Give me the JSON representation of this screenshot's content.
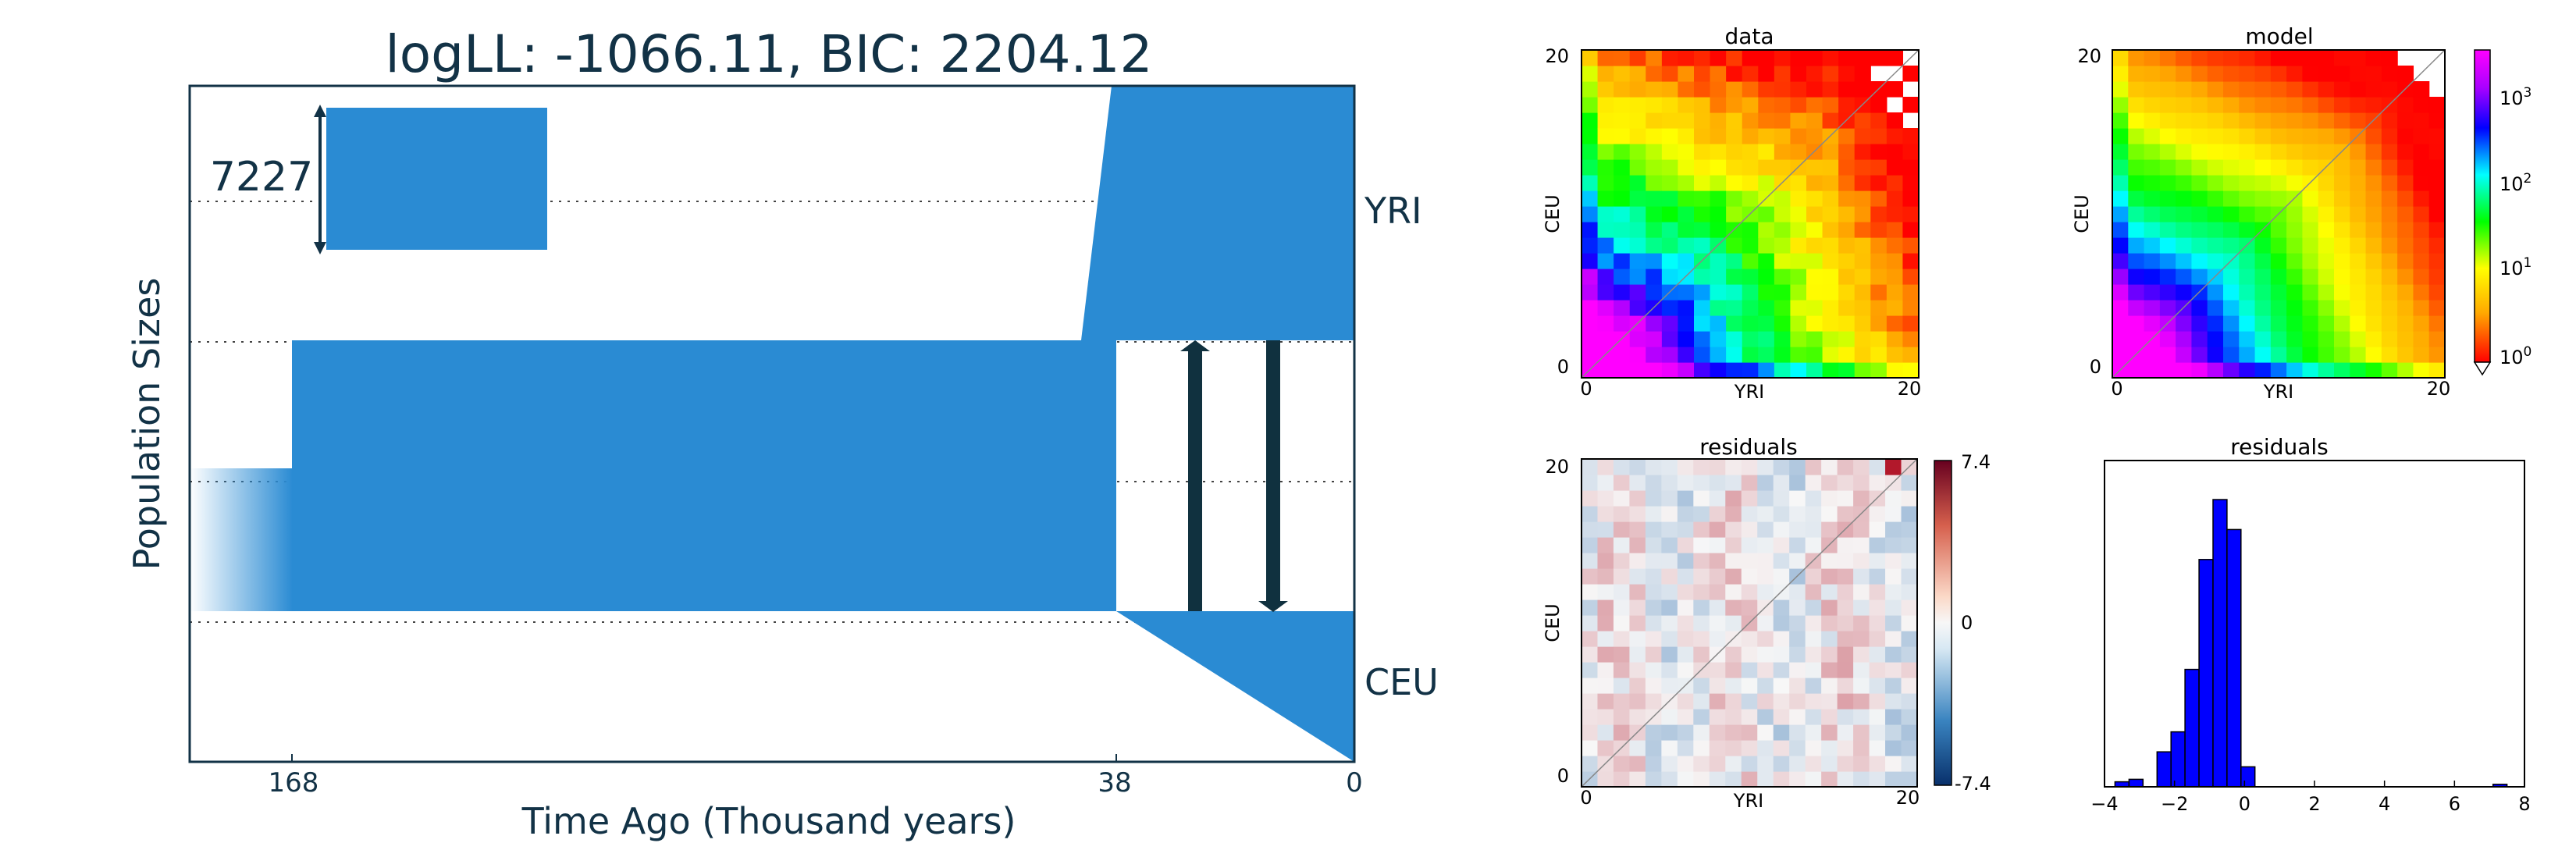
{
  "demography": {
    "title": "logLL:   -1066.11, BIC:    2204.12",
    "xlabel": "Time Ago (Thousand years)",
    "ylabel": "Population Sizes",
    "time_ticks": [
      "168",
      "38",
      "0"
    ],
    "populations": [
      "YRI",
      "CEU"
    ],
    "scale_bar_label": "7227",
    "color": "#2a8bd3",
    "arrow_color": "#10313f"
  },
  "chart_data": [
    {
      "type": "heatmap",
      "title": "data",
      "xlabel": "YRI",
      "ylabel": "CEU",
      "xticks": [
        "0",
        "20"
      ],
      "yticks": [
        "0",
        "20"
      ],
      "size": 21,
      "note": "joint site frequency spectrum, log color scale"
    },
    {
      "type": "heatmap",
      "title": "model",
      "xlabel": "YRI",
      "ylabel": "CEU",
      "xticks": [
        "0",
        "20"
      ],
      "yticks": [
        "0",
        "20"
      ],
      "size": 21,
      "colorbar": {
        "scale": "log",
        "labels": [
          "10",
          "10",
          "10",
          "10"
        ],
        "exponents": [
          "0",
          "1",
          "2",
          "3"
        ]
      }
    },
    {
      "type": "heatmap",
      "title": "residuals",
      "xlabel": "YRI",
      "ylabel": "CEU",
      "xticks": [
        "0",
        "20"
      ],
      "yticks": [
        "0",
        "20"
      ],
      "size": 21,
      "colorbar": {
        "labels": [
          "7.4",
          "0",
          "-7.4"
        ],
        "min": -7.4,
        "max": 7.4
      }
    },
    {
      "type": "bar",
      "title": "residuals",
      "x_ticks": [
        "−4",
        "−2",
        "0",
        "2",
        "4",
        "6",
        "8"
      ],
      "xlim": [
        -4,
        8
      ],
      "bins": [
        -3.5,
        -3.1,
        -2.7,
        -2.3,
        -1.9,
        -1.5,
        -1.1,
        -0.7,
        -0.3,
        0.1,
        0.5,
        0.9,
        1.3,
        1.7,
        2.1,
        2.5,
        2.9,
        3.3,
        3.7,
        4.1,
        4.5,
        4.9,
        5.3,
        5.7,
        6.1,
        6.5,
        6.9,
        7.3
      ],
      "counts": [
        2,
        3,
        0,
        14,
        22,
        47,
        91,
        115,
        103,
        8,
        0,
        0,
        0,
        0,
        0,
        0,
        0,
        0,
        0,
        0,
        0,
        0,
        0,
        0,
        0,
        0,
        0,
        1
      ],
      "bar_width": 0.4,
      "color": "#0000ff"
    }
  ]
}
